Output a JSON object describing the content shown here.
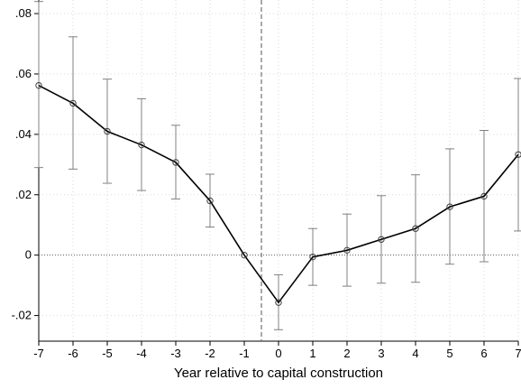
{
  "chart_data": {
    "type": "line",
    "title": "",
    "xlabel": "Year relative to capital construction",
    "ylabel": "",
    "xlim": [
      -7,
      7
    ],
    "ylim": [
      -0.0285,
      0.0845
    ],
    "grid": true,
    "x_ticks": [
      -7,
      -6,
      -5,
      -4,
      -3,
      -2,
      -1,
      0,
      1,
      2,
      3,
      4,
      5,
      6,
      7
    ],
    "x_tick_labels": [
      "-7",
      "-6",
      "-5",
      "-4",
      "-3",
      "-2",
      "-1",
      "0",
      "1",
      "2",
      "3",
      "4",
      "5",
      "6",
      "7"
    ],
    "y_ticks": [
      -0.02,
      0,
      0.02,
      0.04,
      0.06,
      0.08
    ],
    "y_tick_labels": [
      "-.02",
      "0",
      ".02",
      ".04",
      ".06",
      ".08"
    ],
    "reference_lines": {
      "vertical_x": -0.5,
      "horizontal_y": 0
    },
    "series": [
      {
        "x": [
          -7,
          -6,
          -5,
          -4,
          -3,
          -2,
          -1,
          0,
          1,
          2,
          3,
          4,
          5,
          6,
          7
        ],
        "values": [
          0.0562,
          0.0503,
          0.041,
          0.0365,
          0.0307,
          0.018,
          0.0,
          -0.0157,
          -0.0006,
          0.0016,
          0.0052,
          0.0088,
          0.016,
          0.0195,
          0.0333
        ],
        "ci_lower": [
          0.029,
          0.0285,
          0.0238,
          0.0214,
          0.0186,
          0.0093,
          0.0,
          -0.0247,
          -0.01,
          -0.0103,
          -0.0093,
          -0.009,
          -0.003,
          -0.0022,
          0.008
        ],
        "ci_upper": [
          0.084,
          0.0723,
          0.0583,
          0.0518,
          0.043,
          0.0268,
          0.0,
          -0.0065,
          0.0088,
          0.0136,
          0.0197,
          0.0266,
          0.0352,
          0.0413,
          0.0585
        ]
      }
    ],
    "colors": {
      "line": "#000000",
      "error_bars": "#808080",
      "grid": "#d9d9d9",
      "zero_line": "#595959",
      "vertical_line": "#707070",
      "marker_stroke": "#404040"
    }
  }
}
